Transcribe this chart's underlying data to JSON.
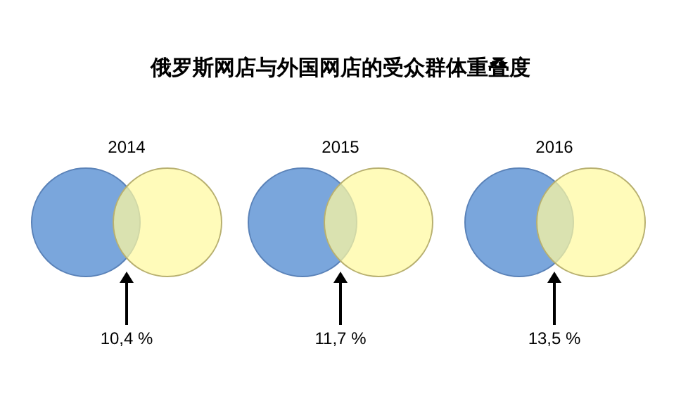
{
  "chart_data": {
    "type": "other",
    "title": "俄罗斯网店与外国网店的受众群体重叠度",
    "categories": [
      "2014",
      "2015",
      "2016"
    ],
    "values": [
      10.4,
      11.7,
      13.5
    ],
    "value_labels": [
      "10,4 %",
      "11,7 %",
      "13,5 %"
    ]
  }
}
